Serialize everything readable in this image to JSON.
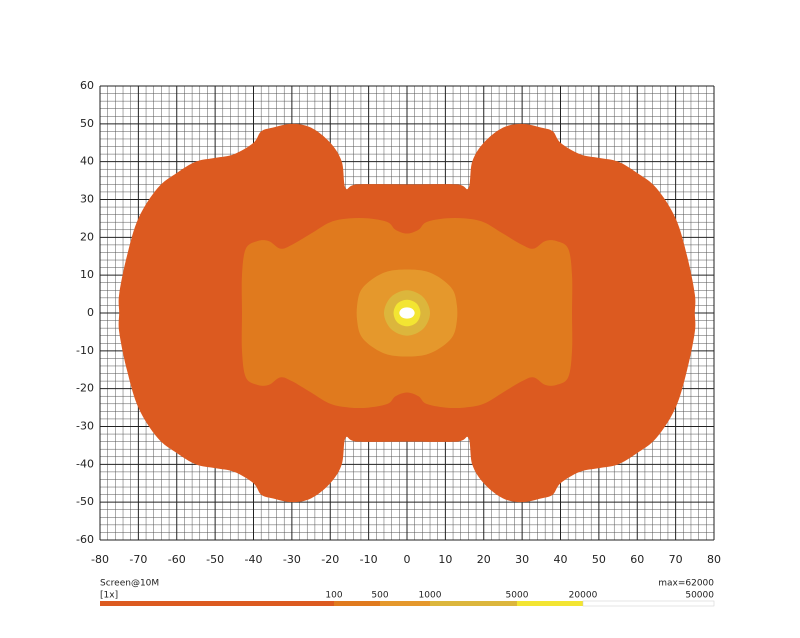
{
  "chart_data": {
    "type": "contour",
    "caption": "Screen@10M",
    "scale_label": "[1x]",
    "max_label": "max=62000",
    "xlim": [
      -80,
      80
    ],
    "ylim": [
      -60,
      60
    ],
    "xticks": [
      -80,
      -70,
      -60,
      -50,
      -40,
      -30,
      -20,
      -10,
      0,
      10,
      20,
      30,
      40,
      50,
      60,
      70,
      80
    ],
    "yticks": [
      -60,
      -50,
      -40,
      -30,
      -20,
      -10,
      0,
      10,
      20,
      30,
      40,
      50,
      60
    ],
    "grid": true,
    "levels": [
      {
        "name": "100",
        "value": 100,
        "color": "#dc5a20",
        "x": [
          0,
          13,
          16,
          17,
          20,
          25,
          30,
          35,
          38,
          40,
          45,
          50,
          55,
          60,
          65,
          70,
          73,
          75,
          75,
          75,
          73,
          70,
          65,
          60,
          55,
          50,
          45,
          40,
          38,
          35,
          30,
          25,
          20,
          17,
          16,
          13,
          0,
          -13,
          -16,
          -17,
          -20,
          -25,
          -30,
          -35,
          -38,
          -40,
          -45,
          -50,
          -55,
          -60,
          -65,
          -70,
          -73,
          -75,
          -75,
          -75,
          -73,
          -70,
          -65,
          -60,
          -55,
          -50,
          -45,
          -40,
          -38,
          -35,
          -30,
          -25,
          -20,
          -17,
          -16,
          -13
        ],
        "y": [
          34,
          34,
          33,
          40,
          45,
          49,
          50,
          49,
          48,
          45,
          42,
          41,
          40,
          37,
          33,
          25,
          15,
          5,
          0,
          -5,
          -15,
          -25,
          -33,
          -37,
          -40,
          -41,
          -42,
          -45,
          -48,
          -49,
          -50,
          -49,
          -45,
          -40,
          -33,
          -34,
          -34,
          -34,
          -33,
          -40,
          -45,
          -49,
          -50,
          -49,
          -48,
          -45,
          -42,
          -41,
          -40,
          -37,
          -33,
          -25,
          -15,
          -5,
          0,
          5,
          15,
          25,
          33,
          37,
          40,
          41,
          42,
          45,
          48,
          49,
          50,
          49,
          45,
          40,
          33,
          34
        ]
      },
      {
        "name": "500",
        "value": 500,
        "color": "#e07a1e",
        "x": [
          0,
          3,
          5,
          10,
          15,
          20,
          25,
          30,
          33,
          36,
          39,
          42,
          43,
          43,
          43,
          42,
          39,
          36,
          33,
          30,
          25,
          20,
          15,
          10,
          5,
          3,
          0,
          -3,
          -5,
          -10,
          -15,
          -20,
          -25,
          -30,
          -33,
          -36,
          -39,
          -42,
          -43,
          -43,
          -43,
          -42,
          -39,
          -36,
          -33,
          -30,
          -25,
          -20,
          -15,
          -10,
          -5,
          -3
        ],
        "y": [
          21,
          22,
          24,
          25,
          25,
          24,
          21,
          18,
          17,
          19,
          19,
          17,
          10,
          0,
          -10,
          -17,
          -19,
          -19,
          -17,
          -18,
          -21,
          -24,
          -25,
          -25,
          -24,
          -22,
          -21,
          -22,
          -24,
          -25,
          -25,
          -24,
          -21,
          -18,
          -17,
          -19,
          -19,
          -17,
          -10,
          0,
          10,
          17,
          19,
          19,
          17,
          18,
          21,
          24,
          25,
          25,
          24,
          22
        ]
      },
      {
        "name": "1000",
        "value": 1000,
        "color": "#e5982c",
        "x": [
          0,
          5,
          9,
          12,
          13,
          13,
          12,
          9,
          5,
          0,
          -5,
          -9,
          -12,
          -13,
          -13,
          -12,
          -9,
          -5
        ],
        "y": [
          11.5,
          11,
          9,
          6,
          2,
          -2,
          -6,
          -9,
          -11,
          -11.5,
          -11,
          -9,
          -6,
          -2,
          2,
          6,
          9,
          11
        ]
      },
      {
        "name": "5000",
        "value": 5000,
        "color": "#dcb63c",
        "x": [
          0,
          4.2,
          6,
          4.2,
          0,
          -4.2,
          -6,
          -4.2
        ],
        "y": [
          6,
          4.2,
          0,
          -4.2,
          -6,
          -4.2,
          0,
          4.2
        ]
      },
      {
        "name": "20000",
        "value": 20000,
        "color": "#f3e532",
        "x": [
          0,
          2.5,
          3.5,
          2.5,
          0,
          -2.5,
          -3.5,
          -2.5
        ],
        "y": [
          3.5,
          2.5,
          0,
          -2.5,
          -3.5,
          -2.5,
          0,
          2.5
        ]
      },
      {
        "name": "50000",
        "value": 50000,
        "color": "#ffffff",
        "x": [
          0,
          1.4,
          2,
          1.4,
          0,
          -1.4,
          -2,
          -1.4
        ],
        "y": [
          1.5,
          1.1,
          0,
          -1.1,
          -1.5,
          -1.1,
          0,
          1.1
        ]
      }
    ]
  }
}
